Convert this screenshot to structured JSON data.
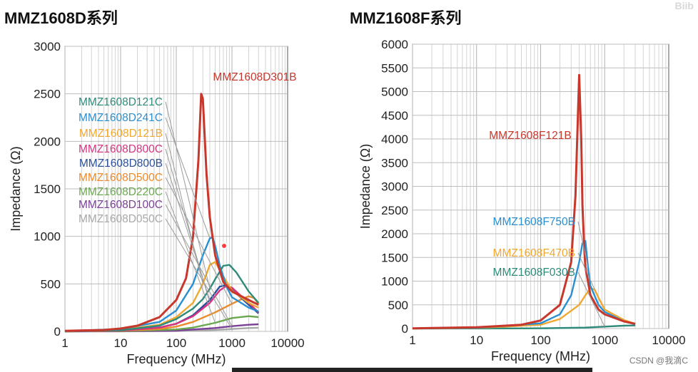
{
  "titles": {
    "left": "MMZ1608D系列",
    "right": "MMZ1608F系列"
  },
  "watermark": "CSDN @我滴C",
  "corner_mark": "Biib",
  "chart_data": [
    {
      "type": "line",
      "title": "MMZ1608D系列",
      "xlabel": "Frequency (MHz)",
      "ylabel": "Impedance (Ω)",
      "xscale": "log",
      "xlim": [
        1,
        10000
      ],
      "ylim": [
        0,
        3000
      ],
      "xticks": [
        "1",
        "10",
        "100",
        "1000",
        "10000"
      ],
      "yticks": [
        "0",
        "500",
        "1000",
        "1500",
        "2000",
        "2500",
        "3000"
      ],
      "series": [
        {
          "name": "MMZ1608D301B",
          "color": "#c8372c",
          "x": [
            1,
            5,
            10,
            20,
            50,
            100,
            150,
            200,
            250,
            280,
            300,
            350,
            400,
            500,
            700,
            1000,
            2000,
            3000
          ],
          "y": [
            5,
            15,
            30,
            60,
            150,
            330,
            560,
            1000,
            1800,
            2500,
            2450,
            1650,
            1200,
            800,
            520,
            420,
            330,
            280
          ]
        },
        {
          "name": "MMZ1608D121C",
          "color": "#2e8b7a",
          "x": [
            1,
            10,
            50,
            100,
            200,
            300,
            400,
            500,
            700,
            900,
            1200,
            2000,
            3000
          ],
          "y": [
            2,
            12,
            60,
            130,
            240,
            340,
            450,
            550,
            690,
            700,
            620,
            420,
            300
          ]
        },
        {
          "name": "MMZ1608D241C",
          "color": "#2a8fd0",
          "x": [
            1,
            10,
            50,
            100,
            200,
            300,
            400,
            450,
            500,
            600,
            800,
            1000,
            2000,
            3000
          ],
          "y": [
            3,
            25,
            100,
            220,
            500,
            800,
            980,
            990,
            900,
            700,
            470,
            360,
            250,
            210
          ]
        },
        {
          "name": "MMZ1608D121B",
          "color": "#f0a830",
          "x": [
            1,
            10,
            50,
            100,
            200,
            300,
            400,
            500,
            700,
            1000,
            2000,
            3000
          ],
          "y": [
            2,
            15,
            70,
            150,
            300,
            500,
            700,
            730,
            580,
            430,
            300,
            250
          ]
        },
        {
          "name": "MMZ1608D800C",
          "color": "#d6337f",
          "x": [
            1,
            10,
            50,
            100,
            200,
            400,
            600,
            800,
            1000,
            2000,
            3000
          ],
          "y": [
            1,
            8,
            40,
            80,
            160,
            300,
            430,
            480,
            460,
            300,
            200
          ]
        },
        {
          "name": "MMZ1608D800B",
          "color": "#2b4f9c",
          "x": [
            1,
            10,
            50,
            100,
            200,
            400,
            600,
            800,
            1000,
            2000,
            3000
          ],
          "y": [
            1,
            8,
            40,
            80,
            170,
            330,
            470,
            490,
            440,
            280,
            190
          ]
        },
        {
          "name": "MMZ1608D500C",
          "color": "#ec8a2a",
          "x": [
            1,
            10,
            50,
            100,
            200,
            500,
            1000,
            1500,
            2000,
            2500,
            3000
          ],
          "y": [
            1,
            5,
            25,
            50,
            100,
            200,
            290,
            340,
            370,
            350,
            290
          ]
        },
        {
          "name": "MMZ1608D220C",
          "color": "#6aa84f",
          "x": [
            1,
            10,
            100,
            200,
            500,
            1000,
            2000,
            3000
          ],
          "y": [
            0,
            2,
            20,
            40,
            90,
            140,
            160,
            150
          ]
        },
        {
          "name": "MMZ1608D100C",
          "color": "#7b3f98",
          "x": [
            1,
            10,
            100,
            500,
            1000,
            2000,
            3000
          ],
          "y": [
            0,
            1,
            8,
            35,
            55,
            70,
            75
          ]
        },
        {
          "name": "MMZ1608D050C",
          "color": "#a8a8a8",
          "x": [
            1,
            10,
            100,
            500,
            1000,
            2000,
            3000
          ],
          "y": [
            0,
            1,
            4,
            15,
            25,
            35,
            38
          ]
        }
      ]
    },
    {
      "type": "line",
      "title": "MMZ1608F系列",
      "xlabel": "Frequency (MHz)",
      "ylabel": "Impedance (Ω)",
      "xscale": "log",
      "xlim": [
        1,
        10000
      ],
      "ylim": [
        0,
        6000
      ],
      "xticks": [
        "1",
        "10",
        "100",
        "1000",
        "10000"
      ],
      "yticks": [
        "0",
        "500",
        "1000",
        "1500",
        "2000",
        "2500",
        "3000",
        "3500",
        "4000",
        "4500",
        "5000",
        "5500",
        "6000"
      ],
      "series": [
        {
          "name": "MMZ1608F121B",
          "color": "#c8372c",
          "x": [
            1,
            10,
            50,
            100,
            200,
            300,
            350,
            400,
            430,
            450,
            480,
            500,
            600,
            800,
            1000,
            2000,
            3000
          ],
          "y": [
            5,
            25,
            80,
            170,
            500,
            1400,
            2800,
            5350,
            4000,
            2600,
            1700,
            1300,
            700,
            400,
            300,
            150,
            100
          ]
        },
        {
          "name": "MMZ1608F750B",
          "color": "#2a8fd0",
          "x": [
            1,
            10,
            100,
            200,
            300,
            400,
            450,
            500,
            550,
            600,
            800,
            1000,
            2000,
            3000
          ],
          "y": [
            2,
            15,
            110,
            300,
            700,
            1400,
            1800,
            1850,
            1300,
            900,
            500,
            350,
            150,
            90
          ]
        },
        {
          "name": "MMZ1608F470B",
          "color": "#f0a830",
          "x": [
            1,
            10,
            100,
            200,
            400,
            500,
            600,
            700,
            800,
            1000,
            2000,
            3000
          ],
          "y": [
            1,
            10,
            80,
            200,
            500,
            700,
            850,
            820,
            650,
            400,
            180,
            100
          ]
        },
        {
          "name": "MMZ1608F030B",
          "color": "#2e8b7a",
          "x": [
            1,
            10,
            100,
            500,
            1000,
            2000,
            3000
          ],
          "y": [
            0,
            1,
            5,
            20,
            40,
            60,
            65
          ]
        }
      ]
    }
  ]
}
